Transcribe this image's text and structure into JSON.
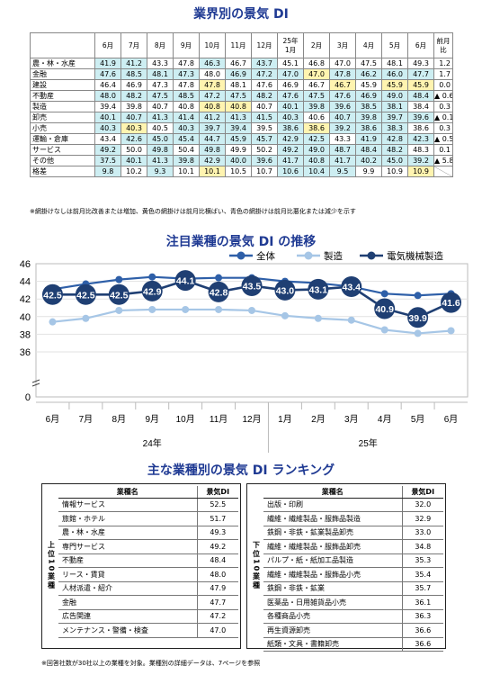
{
  "titles": {
    "table": "業界別の景気 DI",
    "chart": "注目業種の景気 DI の推移",
    "ranking": "主な業種別の景気 DI ランキング"
  },
  "table": {
    "headers": [
      "6月",
      "7月",
      "8月",
      "9月",
      "10月",
      "11月",
      "12月",
      "25年\n1月",
      "2月",
      "3月",
      "4月",
      "5月",
      "6月",
      "前月比"
    ],
    "rows": [
      {
        "name": "農・林・水産",
        "values": [
          "41.9",
          "41.2",
          "43.3",
          "47.8",
          "46.3",
          "46.7",
          "43.7",
          "45.1",
          "46.8",
          "47.0",
          "47.5",
          "48.1",
          "49.3"
        ],
        "shade": [
          "u",
          "u",
          "n",
          "n",
          "u",
          "n",
          "u",
          "n",
          "n",
          "n",
          "n",
          "n",
          "n"
        ],
        "change": "1.2"
      },
      {
        "name": "金融",
        "values": [
          "47.6",
          "48.5",
          "48.1",
          "47.3",
          "48.0",
          "46.9",
          "47.2",
          "47.0",
          "47.0",
          "47.8",
          "46.2",
          "46.0",
          "47.7"
        ],
        "shade": [
          "u",
          "u",
          "u",
          "u",
          "n",
          "u",
          "u",
          "u",
          "d",
          "u",
          "u",
          "u",
          "u"
        ],
        "change": "1.7"
      },
      {
        "name": "建設",
        "values": [
          "46.4",
          "46.9",
          "47.3",
          "47.8",
          "47.8",
          "48.1",
          "47.6",
          "46.9",
          "46.7",
          "46.7",
          "45.9",
          "45.9",
          "45.9"
        ],
        "shade": [
          "n",
          "n",
          "n",
          "n",
          "d",
          "n",
          "n",
          "n",
          "n",
          "d",
          "n",
          "d",
          "d"
        ],
        "change": "0.0"
      },
      {
        "name": "不動産",
        "values": [
          "48.0",
          "48.2",
          "47.5",
          "48.5",
          "47.2",
          "47.5",
          "48.2",
          "47.6",
          "47.5",
          "47.6",
          "46.9",
          "49.0",
          "48.4"
        ],
        "shade": [
          "u",
          "u",
          "u",
          "u",
          "u",
          "u",
          "u",
          "u",
          "u",
          "u",
          "u",
          "u",
          "u"
        ],
        "change": "▲ 0.6"
      },
      {
        "name": "製造",
        "values": [
          "39.4",
          "39.8",
          "40.7",
          "40.8",
          "40.8",
          "40.8",
          "40.7",
          "40.1",
          "39.8",
          "39.6",
          "38.5",
          "38.1",
          "38.4"
        ],
        "shade": [
          "n",
          "n",
          "n",
          "n",
          "d",
          "d",
          "n",
          "u",
          "u",
          "u",
          "u",
          "u",
          "n"
        ],
        "change": "0.3"
      },
      {
        "name": "卸売",
        "values": [
          "40.1",
          "40.7",
          "41.3",
          "41.4",
          "41.2",
          "41.3",
          "41.5",
          "40.3",
          "40.6",
          "40.7",
          "39.8",
          "39.7",
          "39.6"
        ],
        "shade": [
          "u",
          "u",
          "u",
          "u",
          "u",
          "u",
          "u",
          "u",
          "n",
          "u",
          "u",
          "u",
          "u"
        ],
        "change": "▲ 0.1"
      },
      {
        "name": "小売",
        "values": [
          "40.3",
          "40.3",
          "40.5",
          "40.3",
          "39.7",
          "39.4",
          "39.5",
          "38.6",
          "38.6",
          "39.2",
          "38.6",
          "38.3",
          "38.6"
        ],
        "shade": [
          "u",
          "d",
          "n",
          "u",
          "u",
          "u",
          "n",
          "u",
          "d",
          "u",
          "u",
          "u",
          "n"
        ],
        "change": "0.3"
      },
      {
        "name": "運輸・倉庫",
        "values": [
          "43.4",
          "42.6",
          "45.0",
          "45.4",
          "44.7",
          "45.9",
          "45.7",
          "42.9",
          "42.5",
          "43.3",
          "41.9",
          "42.8",
          "42.3"
        ],
        "shade": [
          "n",
          "u",
          "u",
          "u",
          "u",
          "u",
          "u",
          "u",
          "u",
          "n",
          "u",
          "u",
          "u"
        ],
        "change": "▲ 0.5"
      },
      {
        "name": "サービス",
        "values": [
          "49.2",
          "50.0",
          "49.8",
          "50.4",
          "49.8",
          "49.9",
          "50.2",
          "49.2",
          "49.0",
          "48.7",
          "48.4",
          "48.2",
          "48.3"
        ],
        "shade": [
          "u",
          "n",
          "u",
          "n",
          "u",
          "n",
          "n",
          "u",
          "u",
          "u",
          "u",
          "u",
          "n"
        ],
        "change": "0.1"
      },
      {
        "name": "その他",
        "values": [
          "37.5",
          "40.1",
          "41.3",
          "39.8",
          "42.9",
          "40.0",
          "39.6",
          "41.7",
          "40.8",
          "41.7",
          "40.2",
          "45.0",
          "39.2"
        ],
        "shade": [
          "u",
          "u",
          "u",
          "u",
          "u",
          "u",
          "u",
          "u",
          "u",
          "u",
          "u",
          "u",
          "u"
        ],
        "change": "▲ 5.8"
      },
      {
        "name": "格差",
        "values": [
          "9.8",
          "10.2",
          "9.3",
          "10.1",
          "10.1",
          "10.5",
          "10.7",
          "10.6",
          "10.4",
          "9.5",
          "9.9",
          "10.9",
          "10.9"
        ],
        "shade": [
          "u",
          "n",
          "u",
          "n",
          "d",
          "n",
          "n",
          "u",
          "u",
          "u",
          "n",
          "n",
          "d"
        ],
        "change": ""
      }
    ],
    "note": "※網掛けなしは前月比改善または増加、黄色の網掛けは前月比横ばい、青色の網掛けは前月比悪化または減少を示す"
  },
  "chart_data": {
    "type": "line",
    "categories": [
      "6月",
      "7月",
      "8月",
      "9月",
      "10月",
      "11月",
      "12月",
      "1月",
      "2月",
      "3月",
      "4月",
      "5月",
      "6月"
    ],
    "year_labels": [
      "24年",
      "25年"
    ],
    "ylim": [
      0,
      46
    ],
    "yticks": [
      0,
      36,
      38,
      40,
      42,
      44,
      46
    ],
    "axis_break": true,
    "legend_position": "top",
    "series": [
      {
        "name": "全体",
        "color": "#2e5fa8",
        "values": [
          43.1,
          43.7,
          44.2,
          44.5,
          44.3,
          44.4,
          44.4,
          44.0,
          43.8,
          43.4,
          42.6,
          42.4,
          42.6
        ]
      },
      {
        "name": "製造",
        "color": "#a6c6e6",
        "values": [
          39.4,
          39.8,
          40.7,
          40.8,
          40.8,
          40.8,
          40.7,
          40.1,
          39.8,
          39.6,
          38.5,
          38.1,
          38.4
        ]
      },
      {
        "name": "電気機械製造",
        "color": "#1f3f73",
        "values": [
          42.5,
          42.5,
          42.5,
          42.9,
          44.1,
          42.8,
          43.5,
          43.0,
          43.1,
          43.4,
          40.9,
          39.9,
          41.6
        ]
      }
    ],
    "labeled_series": "電気機械製造"
  },
  "ranking": {
    "top_label": "上位10業種",
    "bottom_label": "下位10業種",
    "col_name": "業種名",
    "col_val": "景気DI",
    "top": [
      {
        "name": "情報サービス",
        "val": "52.5"
      },
      {
        "name": "旅館・ホテル",
        "val": "51.7"
      },
      {
        "name": "農・林・水産",
        "val": "49.3"
      },
      {
        "name": "専門サービス",
        "val": "49.2"
      },
      {
        "name": "不動産",
        "val": "48.4"
      },
      {
        "name": "リース・賃貸",
        "val": "48.0"
      },
      {
        "name": "人材派遣・紹介",
        "val": "47.9"
      },
      {
        "name": "金融",
        "val": "47.7"
      },
      {
        "name": "広告関連",
        "val": "47.2"
      },
      {
        "name": "メンテナンス・警備・検査",
        "val": "47.0"
      }
    ],
    "bottom": [
      {
        "name": "出版・印刷",
        "val": "32.0"
      },
      {
        "name": "繊維・繊維製品・服飾品製造",
        "val": "32.9"
      },
      {
        "name": "鉄鋼・非鉄・鉱業製品卸売",
        "val": "33.0"
      },
      {
        "name": "繊維・繊維製品・服飾品卸売",
        "val": "34.8"
      },
      {
        "name": "パルプ・紙・紙加工品製造",
        "val": "35.3"
      },
      {
        "name": "繊維・繊維製品・服飾品小売",
        "val": "35.4"
      },
      {
        "name": "鉄鋼・非鉄・鉱業",
        "val": "35.7"
      },
      {
        "name": "医薬品・日用雑貨品小売",
        "val": "36.1"
      },
      {
        "name": "各種商品小売",
        "val": "36.3"
      },
      {
        "name": "再生資源卸売",
        "val": "36.6"
      },
      {
        "name": "紙類・文具・書籍卸売",
        "val": "36.6"
      }
    ],
    "note": "※回答社数が30社以上の業種を対象。業種別の詳細データは、7ページを参照"
  }
}
